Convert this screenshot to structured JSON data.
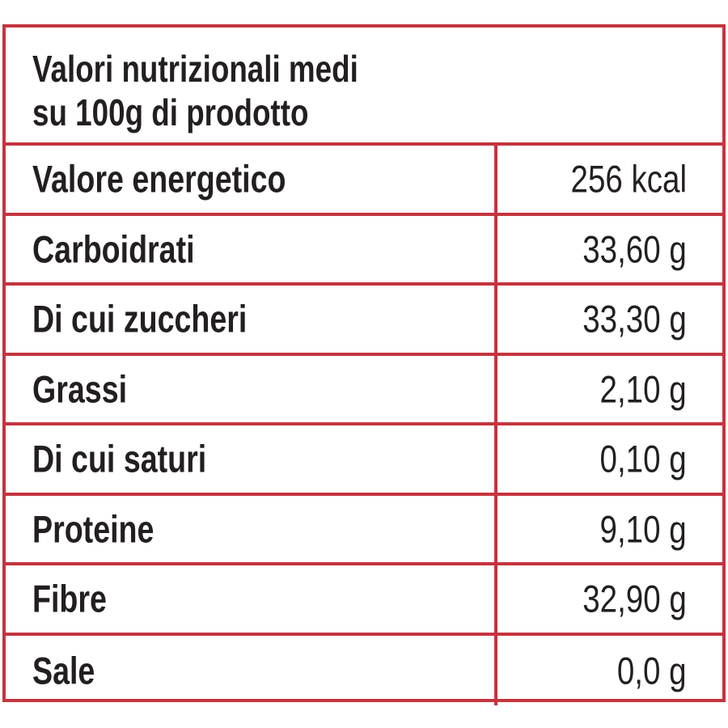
{
  "header": {
    "title": [
      "Valori nutrizionali medi",
      "su 100g di prodotto"
    ]
  },
  "table": {
    "rows": [
      [
        "Valore energetico",
        "256 kcal"
      ],
      [
        "Carboidrati",
        "33,60 g"
      ],
      [
        "Di cui zuccheri",
        "33,30 g"
      ],
      [
        "Grassi",
        "2,10 g"
      ],
      [
        "Di cui saturi",
        "0,10 g"
      ],
      [
        "Proteine",
        "9,10 g"
      ],
      [
        "Fibre",
        "32,90 g"
      ],
      [
        "Sale",
        "0,0 g"
      ]
    ]
  }
}
